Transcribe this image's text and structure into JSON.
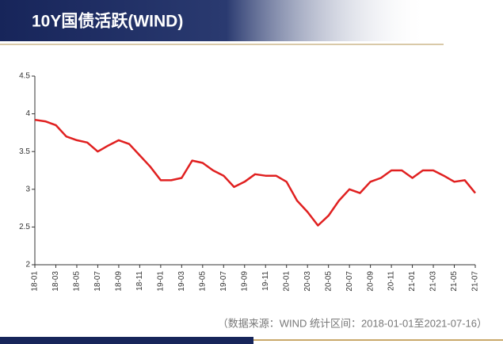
{
  "chart_data": {
    "type": "line",
    "title": "10Y国债活跃(WIND)",
    "source": "（数据来源：WIND 统计区间：2018-01-01至2021-07-16）",
    "categories": [
      "18-01",
      null,
      "18-03",
      null,
      "18-05",
      null,
      "18-07",
      null,
      "18-09",
      null,
      "18-11",
      null,
      "19-01",
      null,
      "19-03",
      null,
      "19-05",
      null,
      "19-07",
      null,
      "19-09",
      null,
      "19-11",
      null,
      "20-01",
      null,
      "20-03",
      null,
      "20-05",
      null,
      "20-07",
      null,
      "20-09",
      null,
      "20-11",
      null,
      "21-01",
      null,
      "21-03",
      null,
      "21-05",
      null,
      "21-07"
    ],
    "values": [
      3.92,
      3.9,
      3.85,
      3.7,
      3.65,
      3.62,
      3.5,
      3.58,
      3.65,
      3.6,
      3.45,
      3.3,
      3.12,
      3.12,
      3.15,
      3.38,
      3.35,
      3.25,
      3.18,
      3.03,
      3.1,
      3.2,
      3.18,
      3.18,
      3.1,
      2.85,
      2.7,
      2.52,
      2.65,
      2.85,
      3.0,
      2.95,
      3.1,
      3.15,
      3.25,
      3.25,
      3.15,
      3.25,
      3.25,
      3.18,
      3.1,
      3.12,
      2.95
    ],
    "color": "#e02020",
    "ylim": [
      2,
      4.5
    ],
    "yticks": [
      2,
      2.5,
      3,
      3.5,
      4,
      4.5
    ]
  }
}
